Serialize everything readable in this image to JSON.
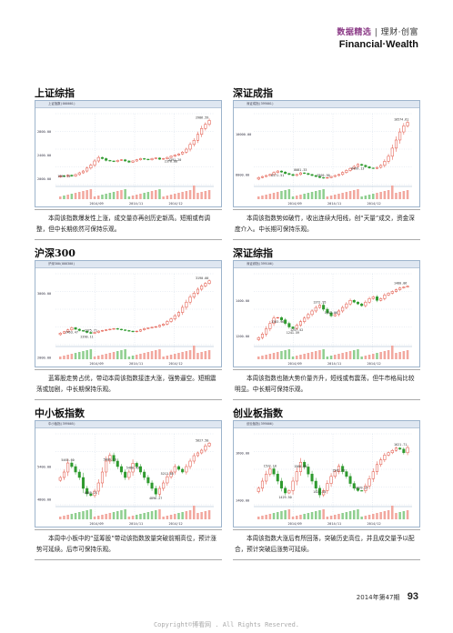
{
  "header": {
    "section": "数据精选",
    "tag": "理财·创富",
    "brand": "Financial·Wealth"
  },
  "panels": [
    {
      "title": "上证综指",
      "chart_bar": "上证指数(000001)",
      "note": "本周该指数爆发性上涨，成交量亦再创历史新高。短期或有调整，但中长期依然可保持乐观。",
      "y_labels": [
        "2800.00",
        "2400.00",
        "2000.00"
      ],
      "x_labels": [
        "2014/09",
        "2014/11",
        "2014/12"
      ],
      "annotations": [
        "2986.59",
        "2391.20",
        "1991.75",
        "2370.88"
      ],
      "chart_data": {
        "type": "candlestick",
        "ylim": [
          1900,
          3100
        ],
        "closes": [
          2050,
          2040,
          2060,
          2045,
          2070,
          2100,
          2130,
          2180,
          2230,
          2300,
          2360,
          2340,
          2310,
          2300,
          2290,
          2310,
          2320,
          2300,
          2280,
          2300,
          2320,
          2340,
          2330,
          2320,
          2340,
          2350,
          2330,
          2340,
          2360,
          2380,
          2400,
          2420,
          2450,
          2500,
          2580,
          2650,
          2750,
          2850,
          2920,
          2986
        ]
      }
    },
    {
      "title": "深证成指",
      "chart_bar": "深证成指(399001)",
      "note": "本周该指数势如破竹，收出连续大阳线，创“天量”成交，资金深度介入。中长期可保持乐观。",
      "y_labels": [
        "10000.00",
        "8000.00"
      ],
      "x_labels": [
        "2014/09",
        "2014/11",
        "2014/12"
      ],
      "annotations": [
        "10574.61",
        "8171.51",
        "7805.90",
        "8499.13",
        "8081.33"
      ],
      "chart_data": {
        "type": "candlestick",
        "ylim": [
          7500,
          11000
        ],
        "closes": [
          7850,
          7900,
          7950,
          8000,
          8100,
          8170,
          8120,
          8050,
          8000,
          7950,
          8000,
          8080,
          8050,
          8000,
          7950,
          7900,
          7850,
          7820,
          7850,
          7900,
          7950,
          8000,
          8100,
          8200,
          8300,
          8400,
          8499,
          8450,
          8380,
          8320,
          8300,
          8350,
          8450,
          8650,
          8900,
          9300,
          9700,
          10100,
          10400,
          10574
        ]
      }
    },
    {
      "title": "沪深300",
      "chart_bar": "沪深300(000300)",
      "note": "蓝筹股走势占优，带动本周该指数接连大涨，强势逼空。短期震荡或加剧，中长期保持乐观。",
      "y_labels": [
        "3000.00",
        "2000.00"
      ],
      "x_labels": [
        "2014/09",
        "2014/11",
        "2014/12"
      ],
      "annotations": [
        "3190.00",
        "2463.47",
        "2375.71",
        "2390.11"
      ],
      "chart_data": {
        "type": "candlestick",
        "ylim": [
          2200,
          3300
        ],
        "closes": [
          2380,
          2400,
          2430,
          2463,
          2440,
          2420,
          2410,
          2390,
          2376,
          2390,
          2410,
          2420,
          2430,
          2440,
          2450,
          2440,
          2430,
          2420,
          2410,
          2400,
          2410,
          2430,
          2450,
          2460,
          2470,
          2480,
          2500,
          2520,
          2560,
          2600,
          2650,
          2700,
          2780,
          2860,
          2940,
          3000,
          3060,
          3110,
          3150,
          3190
        ]
      }
    },
    {
      "title": "深证综指",
      "chart_bar": "深证综指(399106)",
      "note": "本周该指数也随大势价量齐升，短线或有震荡，但牛市格局比较明显。中长期可保持乐观。",
      "y_labels": [
        "1400.00",
        "1200.00"
      ],
      "x_labels": [
        "2014/09",
        "2014/11",
        "2014/12"
      ],
      "annotations": [
        "1480.06",
        "1303.96",
        "1372.95",
        "1241.59",
        "1313.06",
        "1257.52"
      ],
      "chart_data": {
        "type": "candlestick",
        "ylim": [
          1150,
          1550
        ],
        "closes": [
          1190,
          1210,
          1240,
          1270,
          1300,
          1303,
          1290,
          1270,
          1250,
          1242,
          1260,
          1280,
          1300,
          1320,
          1340,
          1360,
          1373,
          1350,
          1330,
          1313,
          1320,
          1340,
          1360,
          1380,
          1400,
          1390,
          1380,
          1370,
          1390,
          1410,
          1420,
          1400,
          1410,
          1430,
          1440,
          1450,
          1460,
          1470,
          1475,
          1480
        ]
      }
    },
    {
      "title": "中小板指数",
      "chart_bar": "中小板指(399005)",
      "note": "本周中小板中的“蓝筹股”带动该指数放量突破前期高位，预计涨势可延续。后市可保持乐观。",
      "y_labels": [
        "5400.00",
        "4800.00"
      ],
      "x_labels": [
        "2014/09",
        "2014/11",
        "2014/12"
      ],
      "annotations": [
        "5827.50",
        "5606.19",
        "5465.60",
        "5460.43",
        "4869.21",
        "4896.27",
        "5213.85"
      ],
      "chart_data": {
        "type": "candlestick",
        "ylim": [
          4700,
          6000
        ],
        "closes": [
          5200,
          5300,
          5466,
          5400,
          5300,
          5200,
          5000,
          4900,
          4869,
          4950,
          5100,
          5300,
          5500,
          5606,
          5500,
          5400,
          5300,
          5200,
          5300,
          5460,
          5400,
          5300,
          5200,
          5100,
          5000,
          4896,
          5000,
          5100,
          5214,
          5300,
          5400,
          5350,
          5300,
          5400,
          5500,
          5600,
          5650,
          5700,
          5780,
          5828
        ]
      }
    },
    {
      "title": "创业板指数",
      "chart_bar": "创业板指(399006)",
      "note": "本周该指数大涨后有所回落，突破历史高位，并且成交量予以配合，预计突破后涨势可延续。",
      "y_labels": [
        "1600.00",
        "1400.00"
      ],
      "x_labels": [
        "2014/09",
        "2014/11",
        "2014/12"
      ],
      "annotations": [
        "1621.71",
        "1560.05",
        "1532.10",
        "1429.50",
        "1421.45",
        "1542.72",
        "1439.27"
      ],
      "chart_data": {
        "type": "candlestick",
        "ylim": [
          1380,
          1680
        ],
        "closes": [
          1450,
          1480,
          1510,
          1532,
          1510,
          1480,
          1450,
          1430,
          1440,
          1480,
          1520,
          1560,
          1540,
          1510,
          1480,
          1450,
          1422,
          1440,
          1470,
          1500,
          1520,
          1543,
          1520,
          1500,
          1470,
          1450,
          1440,
          1439,
          1460,
          1490,
          1520,
          1550,
          1570,
          1590,
          1600,
          1610,
          1620,
          1615,
          1600,
          1622
        ]
      }
    }
  ],
  "footer": {
    "issue": "2014年第47期",
    "page": "93",
    "copyright": "Copyright©博看网 . All Rights Reserved."
  }
}
